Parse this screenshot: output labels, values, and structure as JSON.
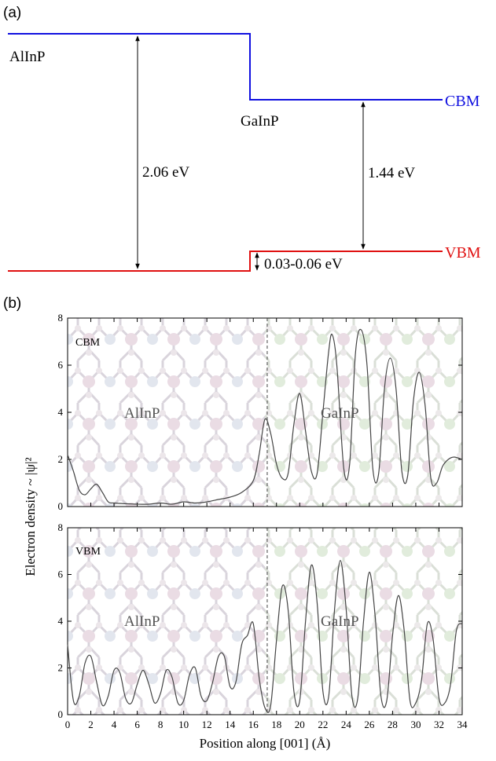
{
  "panel_a": {
    "label": "(a)",
    "materials": {
      "left": "AlInP",
      "right": "GaInP"
    },
    "band_labels": {
      "cbm": "CBM",
      "vbm": "VBM"
    },
    "gaps": {
      "alinp": "2.06 eV",
      "gainp": "1.44 eV",
      "vbo": "0.03-0.06 eV"
    },
    "colors": {
      "cbm": "#1010e0",
      "vbm": "#e01010"
    }
  },
  "panel_b": {
    "label": "(b)",
    "ylabel": "Electron density ~ |ψ|²",
    "xlabel": "Position along [001] (Å)",
    "top": {
      "tag": "CBM",
      "left_material": "AlInP",
      "right_material": "GaInP"
    },
    "bottom": {
      "tag": "VBM",
      "left_material": "AlInP",
      "right_material": "GaInP"
    },
    "x_ticks": [
      "0",
      "2",
      "4",
      "6",
      "8",
      "10",
      "12",
      "14",
      "16",
      "18",
      "20",
      "22",
      "24",
      "26",
      "28",
      "30",
      "32",
      "34"
    ],
    "y_ticks": [
      "0",
      "2",
      "4",
      "6",
      "8"
    ]
  },
  "chart_data": [
    {
      "type": "line",
      "panel": "top",
      "xlim": [
        0,
        34
      ],
      "ylim": [
        0,
        8
      ],
      "interface_x": 17.2,
      "series": [
        {
          "x": [
            0,
            0.5,
            1.0,
            1.5,
            2.0,
            2.5,
            3.0,
            3.5,
            4.0,
            5.0,
            6.0,
            7.0,
            8.0,
            9.0,
            10.0,
            11.0,
            12.0,
            13.0,
            14.0,
            15.0,
            16.0,
            16.5,
            17.0,
            17.5,
            18.0,
            18.5,
            19.0,
            19.5,
            20.0,
            20.5,
            21.0,
            21.5,
            22.0,
            22.5,
            22.8,
            23.2,
            23.8,
            24.3,
            24.8,
            25.3,
            25.8,
            26.3,
            26.8,
            27.3,
            27.8,
            28.3,
            28.8,
            29.3,
            29.8,
            30.3,
            30.8,
            31.3,
            31.8,
            32.3,
            32.8,
            33.3,
            34.0
          ],
          "y": [
            2.2,
            1.5,
            0.7,
            0.5,
            0.75,
            0.95,
            0.6,
            0.2,
            0.15,
            0.12,
            0.1,
            0.1,
            0.15,
            0.1,
            0.2,
            0.15,
            0.2,
            0.3,
            0.4,
            0.6,
            1.1,
            2.2,
            3.7,
            3.1,
            1.8,
            1.2,
            1.4,
            3.5,
            4.8,
            3.2,
            1.5,
            1.4,
            4.0,
            6.6,
            7.3,
            6.0,
            1.6,
            1.8,
            6.5,
            7.5,
            6.0,
            1.6,
            1.4,
            5.0,
            6.3,
            5.0,
            1.5,
            1.3,
            4.5,
            5.7,
            4.3,
            1.2,
            1.0,
            1.7,
            2.0,
            2.1,
            2.0
          ]
        }
      ]
    },
    {
      "type": "line",
      "panel": "bottom",
      "xlim": [
        0,
        34
      ],
      "ylim": [
        0,
        8
      ],
      "interface_x": 17.2,
      "series": [
        {
          "x": [
            0,
            0.5,
            1.0,
            1.5,
            2.0,
            2.5,
            3.0,
            3.5,
            4.0,
            4.5,
            5.0,
            5.5,
            6.0,
            6.5,
            7.0,
            7.5,
            8.0,
            8.5,
            9.0,
            9.5,
            10.0,
            10.5,
            11.0,
            11.5,
            12.0,
            12.5,
            13.0,
            13.5,
            14.0,
            14.5,
            15.0,
            15.5,
            16.0,
            16.5,
            17.0,
            17.5,
            18.0,
            18.5,
            19.0,
            19.5,
            20.0,
            20.5,
            21.0,
            21.5,
            22.0,
            22.5,
            23.0,
            23.5,
            24.0,
            24.5,
            25.0,
            25.5,
            26.0,
            26.5,
            27.0,
            27.5,
            28.0,
            28.5,
            29.0,
            29.5,
            30.0,
            30.5,
            31.0,
            31.5,
            32.0,
            32.5,
            33.0,
            33.5,
            34.0
          ],
          "y": [
            3.0,
            0.6,
            0.8,
            2.2,
            2.5,
            1.4,
            0.4,
            0.8,
            1.9,
            1.8,
            0.7,
            0.5,
            1.3,
            1.9,
            1.3,
            0.5,
            0.9,
            1.9,
            1.6,
            0.5,
            0.6,
            1.7,
            2.0,
            0.8,
            0.6,
            1.4,
            2.5,
            2.5,
            1.2,
            1.4,
            3.0,
            3.4,
            3.9,
            1.6,
            0.3,
            0.4,
            3.2,
            5.5,
            4.5,
            1.0,
            0.6,
            4.0,
            6.4,
            4.8,
            1.0,
            0.8,
            4.5,
            6.6,
            4.5,
            0.8,
            0.7,
            4.0,
            6.1,
            4.2,
            0.8,
            0.6,
            3.4,
            5.1,
            3.6,
            0.6,
            0.5,
            1.5,
            3.9,
            3.2,
            0.7,
            0.5,
            1.3,
            3.6,
            3.9
          ]
        }
      ]
    }
  ]
}
